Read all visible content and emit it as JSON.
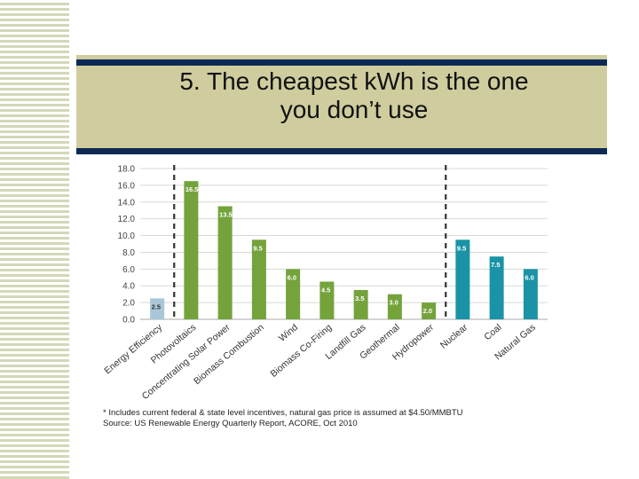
{
  "slide": {
    "title_line1": "5. The cheapest kWh is the one",
    "title_line2": "you don’t use",
    "footnote_line1": "* Includes current federal & state level incentives, natural gas price is assumed at $4.50/MMBTU",
    "footnote_line2": "Source: US Renewable Energy Quarterly Report, ACORE, Oct 2010"
  },
  "colors": {
    "efficiency": "#a9c7d8",
    "renewable": "#74a33c",
    "conventional": "#1a93a6",
    "grid": "#d8d8d8",
    "divider": "#333333"
  },
  "chart_data": {
    "type": "bar",
    "title": "",
    "xlabel": "",
    "ylabel": "",
    "ylim": [
      0,
      18
    ],
    "yticks": [
      "0.0",
      "2.0",
      "4.0",
      "6.0",
      "8.0",
      "10.0",
      "12.0",
      "14.0",
      "16.0",
      "18.0"
    ],
    "grid": true,
    "categories": [
      "Energy Efficiency",
      "Photovoltaics",
      "Concentrating Solar Power",
      "Biomass Combustion",
      "Wind",
      "Biomass Co-Firing",
      "Landfill Gas",
      "Geothermal",
      "Hydropower",
      "Nuclear",
      "Coal",
      "Natural Gas"
    ],
    "values": [
      2.5,
      16.5,
      13.5,
      9.5,
      6.0,
      4.5,
      3.5,
      3.0,
      2.0,
      9.5,
      7.5,
      6.0
    ],
    "labels": [
      "2.5",
      "16.5",
      "13.5",
      "9.5",
      "6.0",
      "4.5",
      "3.5",
      "3.0",
      "2.0",
      "9.5",
      "7.5",
      "6.0"
    ],
    "groups": [
      "efficiency",
      "renewable",
      "renewable",
      "renewable",
      "renewable",
      "renewable",
      "renewable",
      "renewable",
      "renewable",
      "conventional",
      "conventional",
      "conventional"
    ],
    "dividers_after": [
      0,
      8
    ]
  }
}
